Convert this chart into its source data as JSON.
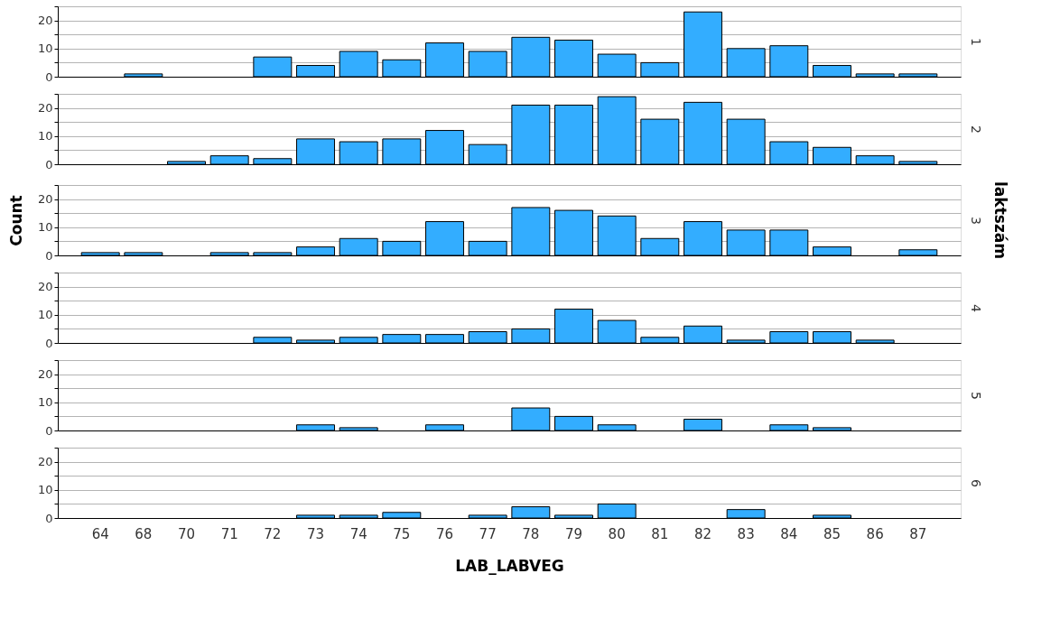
{
  "chart_data": [
    {
      "type": "bar",
      "y2label": "1",
      "categories": [
        "64",
        "68",
        "70",
        "71",
        "72",
        "73",
        "74",
        "75",
        "76",
        "77",
        "78",
        "79",
        "80",
        "81",
        "82",
        "83",
        "84",
        "85",
        "86",
        "87"
      ],
      "values": [
        null,
        1,
        null,
        null,
        7,
        4,
        9,
        6,
        12,
        9,
        14,
        13,
        8,
        5,
        23,
        10,
        11,
        4,
        1,
        1
      ],
      "color": "#33adff",
      "ylim": [
        0,
        25
      ],
      "yticks": [
        0,
        {
          "value": 5,
          "label": null
        },
        10,
        {
          "value": 15,
          "label": null
        },
        20,
        {
          "value": 25,
          "label": null
        }
      ],
      "grid": "y",
      "tick_labels": "y"
    },
    {
      "type": "bar",
      "y2label": "2",
      "categories": [
        "64",
        "68",
        "70",
        "71",
        "72",
        "73",
        "74",
        "75",
        "76",
        "77",
        "78",
        "79",
        "80",
        "81",
        "82",
        "83",
        "84",
        "85",
        "86",
        "87"
      ],
      "values": [
        null,
        null,
        1,
        3,
        2,
        9,
        8,
        9,
        12,
        7,
        21,
        21,
        24,
        16,
        22,
        16,
        8,
        6,
        3,
        1
      ],
      "color": "#33adff",
      "ylim": [
        0,
        25
      ],
      "yticks": [
        0,
        {
          "value": 5,
          "label": null
        },
        10,
        {
          "value": 15,
          "label": null
        },
        20,
        {
          "value": 25,
          "label": null
        }
      ],
      "grid": "y",
      "tick_labels": "y"
    },
    {
      "type": "bar",
      "y2label": "3",
      "ylabel": "Count",
      "annotations": [
        "laktszám"
      ],
      "categories": [
        "64",
        "68",
        "70",
        "71",
        "72",
        "73",
        "74",
        "75",
        "76",
        "77",
        "78",
        "79",
        "80",
        "81",
        "82",
        "83",
        "84",
        "85",
        "86",
        "87"
      ],
      "values": [
        1,
        1,
        null,
        1,
        1,
        3,
        6,
        5,
        12,
        5,
        17,
        16,
        14,
        6,
        12,
        9,
        9,
        3,
        null,
        2
      ],
      "color": "#33adff",
      "ylim": [
        0,
        25
      ],
      "yticks": [
        0,
        {
          "value": 5,
          "label": null
        },
        10,
        {
          "value": 15,
          "label": null
        },
        20,
        {
          "value": 25,
          "label": null
        }
      ],
      "grid": "y",
      "tick_labels": "y"
    },
    {
      "type": "bar",
      "y2label": "4",
      "categories": [
        "64",
        "68",
        "70",
        "71",
        "72",
        "73",
        "74",
        "75",
        "76",
        "77",
        "78",
        "79",
        "80",
        "81",
        "82",
        "83",
        "84",
        "85",
        "86",
        "87"
      ],
      "values": [
        null,
        null,
        null,
        null,
        2,
        1,
        2,
        3,
        3,
        4,
        5,
        12,
        8,
        2,
        6,
        1,
        4,
        4,
        1,
        null
      ],
      "color": "#33adff",
      "ylim": [
        0,
        25
      ],
      "yticks": [
        0,
        {
          "value": 5,
          "label": null
        },
        10,
        {
          "value": 15,
          "label": null
        },
        20,
        {
          "value": 25,
          "label": null
        }
      ],
      "grid": "y",
      "tick_labels": "y"
    },
    {
      "type": "bar",
      "y2label": "5",
      "categories": [
        "64",
        "68",
        "70",
        "71",
        "72",
        "73",
        "74",
        "75",
        "76",
        "77",
        "78",
        "79",
        "80",
        "81",
        "82",
        "83",
        "84",
        "85",
        "86",
        "87"
      ],
      "values": [
        null,
        null,
        null,
        null,
        null,
        2,
        1,
        null,
        2,
        null,
        8,
        5,
        2,
        null,
        4,
        null,
        2,
        1,
        null,
        null
      ],
      "color": "#33adff",
      "ylim": [
        0,
        25
      ],
      "yticks": [
        0,
        {
          "value": 5,
          "label": null
        },
        10,
        {
          "value": 15,
          "label": null
        },
        20,
        {
          "value": 25,
          "label": null
        }
      ],
      "grid": "y",
      "tick_labels": "y"
    },
    {
      "type": "bar",
      "y2label": "6",
      "xlabel": "LAB_LABVEG",
      "categories": [
        "64",
        "68",
        "70",
        "71",
        "72",
        "73",
        "74",
        "75",
        "76",
        "77",
        "78",
        "79",
        "80",
        "81",
        "82",
        "83",
        "84",
        "85",
        "86",
        "87"
      ],
      "values": [
        null,
        null,
        null,
        null,
        null,
        1,
        1,
        2,
        null,
        1,
        4,
        1,
        5,
        null,
        null,
        3,
        null,
        1,
        null,
        null
      ],
      "color": "#33adff",
      "ylim": [
        0,
        25
      ],
      "yticks": [
        0,
        {
          "value": 5,
          "label": null
        },
        10,
        {
          "value": 15,
          "label": null
        },
        20,
        {
          "value": 25,
          "label": null
        }
      ],
      "grid": "y"
    }
  ]
}
